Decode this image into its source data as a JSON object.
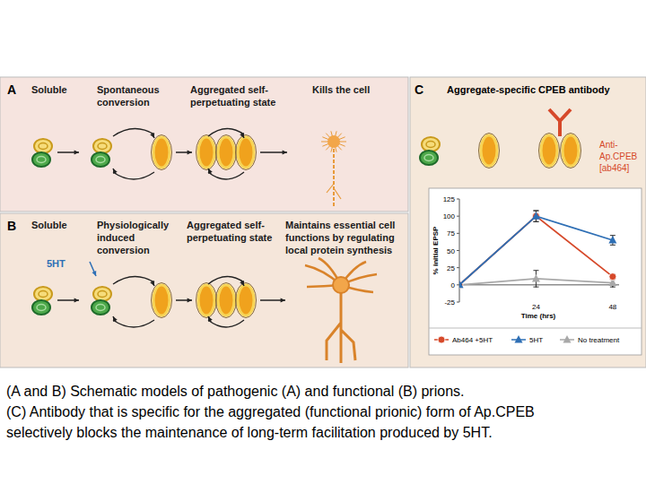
{
  "panels": [
    {
      "label": "A",
      "headers": [
        [
          "Soluble"
        ],
        [
          "Spontaneous",
          "conversion"
        ],
        [
          "Aggregated self-",
          "perpetuating state"
        ],
        [
          "Kills the cell"
        ]
      ]
    },
    {
      "label": "B",
      "headers": [
        [
          "Soluble"
        ],
        [
          "Physiologically",
          "induced",
          "conversion"
        ],
        [
          "Aggregated self-",
          "perpetuating state"
        ],
        [
          "Maintains essential cell",
          "functions by regulating",
          "local protein synthesis"
        ]
      ],
      "stimulus": "5HT"
    },
    {
      "label": "C",
      "title": "Aggregate-specific CPEB antibody",
      "antibody_label": [
        "Anti-",
        "Ap.CPEB",
        "[ab464]"
      ]
    }
  ],
  "chart_data": {
    "type": "line",
    "x": [
      0,
      24,
      48
    ],
    "xlim": [
      0,
      50
    ],
    "xticks": [
      24,
      48
    ],
    "ylim": [
      -25,
      125
    ],
    "yticks": [
      -25,
      0,
      25,
      50,
      75,
      100,
      125
    ],
    "x_label": "Time (hrs)",
    "y_label": "% initial EPSP",
    "legend": "bottom",
    "series": [
      {
        "name": "Ab464 +5HT",
        "color": "#d6492a",
        "marker": "circle",
        "values": [
          0,
          100,
          12
        ],
        "errors": [
          0,
          8,
          4
        ]
      },
      {
        "name": "5HT",
        "color": "#2e6fb5",
        "marker": "triangle",
        "values": [
          0,
          100,
          65
        ],
        "errors": [
          0,
          8,
          7
        ]
      },
      {
        "name": "No treatment",
        "color": "#a8a8a8",
        "marker": "triangle",
        "values": [
          0,
          9,
          3
        ],
        "errors": [
          0,
          12,
          6
        ]
      }
    ]
  },
  "caption": [
    "(A and B) Schematic models of pathogenic (A) and functional (B) prions.",
    "(C) Antibody that is specific for the aggregated (functional prionic) form of Ap.CPEB",
    "selectively blocks the maintenance of long-term facilitation produced by 5HT."
  ]
}
